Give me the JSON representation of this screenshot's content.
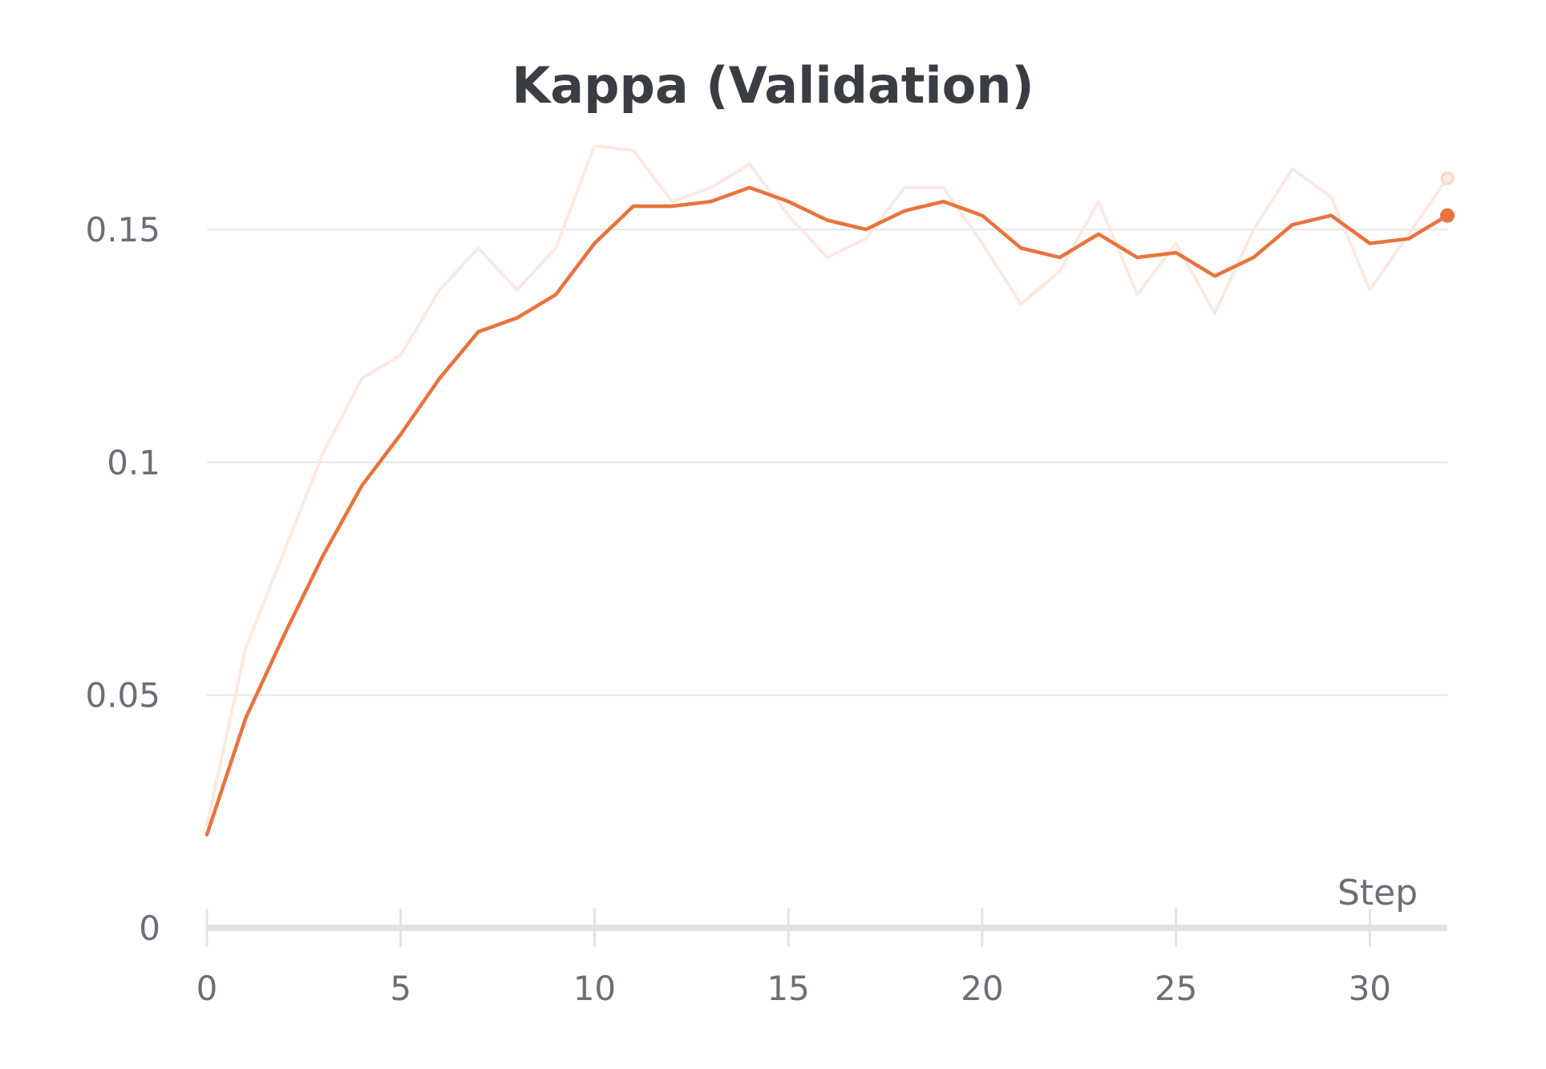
{
  "chart_data": {
    "type": "line",
    "title": "Kappa (Validation)",
    "xlabel": "Step",
    "ylabel": "",
    "xlim": [
      0,
      32
    ],
    "ylim": [
      0,
      0.17
    ],
    "x_ticks": [
      0,
      5,
      10,
      15,
      20,
      25,
      30
    ],
    "x_tick_labels": [
      "0",
      "5",
      "10",
      "15",
      "20",
      "25",
      "30"
    ],
    "y_ticks": [
      0,
      0.05,
      0.1,
      0.15
    ],
    "y_tick_labels": [
      "0",
      "0.05",
      "0.1",
      "0.15"
    ],
    "grid": true,
    "legend": "none",
    "series": [
      {
        "role": "raw",
        "color": "#fde9e2",
        "x": [
          0,
          1,
          2,
          3,
          4,
          5,
          6,
          7,
          8,
          9,
          10,
          11,
          12,
          13,
          14,
          15,
          16,
          17,
          18,
          19,
          20,
          21,
          22,
          23,
          24,
          25,
          26,
          27,
          28,
          29,
          30,
          31,
          32
        ],
        "values": [
          0.022,
          0.06,
          0.081,
          0.102,
          0.118,
          0.123,
          0.137,
          0.146,
          0.137,
          0.146,
          0.168,
          0.167,
          0.156,
          0.159,
          0.164,
          0.153,
          0.144,
          0.148,
          0.159,
          0.159,
          0.147,
          0.134,
          0.141,
          0.156,
          0.136,
          0.147,
          0.132,
          0.15,
          0.163,
          0.157,
          0.137,
          0.149,
          0.161
        ]
      },
      {
        "role": "smoothed",
        "color": "#e8733d",
        "x": [
          0,
          1,
          2,
          3,
          4,
          5,
          6,
          7,
          8,
          9,
          10,
          11,
          12,
          13,
          14,
          15,
          16,
          17,
          18,
          19,
          20,
          21,
          22,
          23,
          24,
          25,
          26,
          27,
          28,
          29,
          30,
          31,
          32
        ],
        "values": [
          0.02,
          0.045,
          0.063,
          0.08,
          0.095,
          0.106,
          0.118,
          0.128,
          0.131,
          0.136,
          0.147,
          0.155,
          0.155,
          0.156,
          0.159,
          0.156,
          0.152,
          0.15,
          0.154,
          0.156,
          0.153,
          0.146,
          0.144,
          0.149,
          0.144,
          0.145,
          0.14,
          0.144,
          0.151,
          0.153,
          0.147,
          0.148,
          0.153
        ]
      }
    ]
  }
}
